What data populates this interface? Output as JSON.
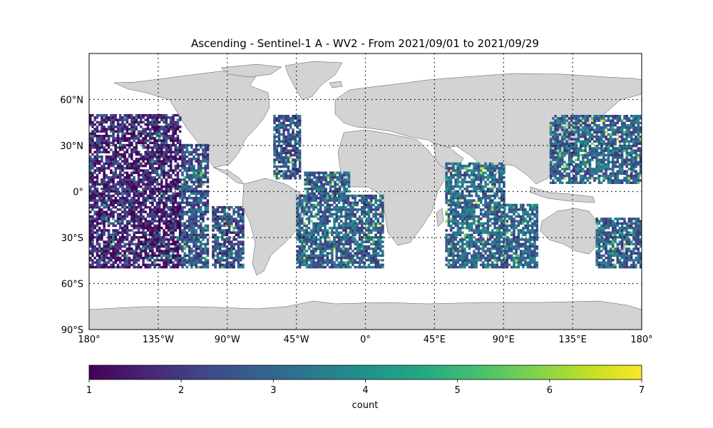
{
  "chart_data": {
    "type": "heatmap",
    "title": "Ascending - Sentinel-1 A - WV2 - From 2021/09/01 to 2021/09/29",
    "projection": "plate-carree",
    "xlim": [
      -180,
      180
    ],
    "ylim": [
      -90,
      90
    ],
    "lat_ticks": [
      {
        "value": 60,
        "label": "60°N"
      },
      {
        "value": 30,
        "label": "30°N"
      },
      {
        "value": 0,
        "label": "0°"
      },
      {
        "value": -30,
        "label": "30°S"
      },
      {
        "value": -60,
        "label": "60°S"
      },
      {
        "value": -90,
        "label": "90°S"
      }
    ],
    "lon_ticks": [
      {
        "value": -180,
        "label": "180°"
      },
      {
        "value": -135,
        "label": "135°W"
      },
      {
        "value": -90,
        "label": "90°W"
      },
      {
        "value": -45,
        "label": "45°W"
      },
      {
        "value": 0,
        "label": "0°"
      },
      {
        "value": 45,
        "label": "45°E"
      },
      {
        "value": 90,
        "label": "90°E"
      },
      {
        "value": 135,
        "label": "135°E"
      },
      {
        "value": 180,
        "label": "180°"
      }
    ],
    "grid": "dotted",
    "land_color": "#d3d3d3",
    "colormap": "viridis",
    "colorbar": {
      "label": "count",
      "min": 1,
      "max": 7,
      "ticks": [
        {
          "value": 1,
          "label": "1"
        },
        {
          "value": 2,
          "label": "2"
        },
        {
          "value": 3,
          "label": "3"
        },
        {
          "value": 4,
          "label": "4"
        },
        {
          "value": 5,
          "label": "5"
        },
        {
          "value": 6,
          "label": "6"
        },
        {
          "value": 7,
          "label": "7"
        }
      ]
    },
    "cell_size_deg": 1.5,
    "lat_extent": [
      -50,
      50
    ],
    "swath_strips": [
      {
        "lon_min": -180,
        "lon_max": -120,
        "lat_min": -50,
        "lat_max": 50,
        "mean_count": 1.6
      },
      {
        "lon_min": -120,
        "lon_max": -102,
        "lat_min": -50,
        "lat_max": 30,
        "mean_count": 2.6
      },
      {
        "lon_min": -100,
        "lon_max": -80,
        "lat_min": -50,
        "lat_max": -10,
        "mean_count": 2.4
      },
      {
        "lon_min": -60,
        "lon_max": -42,
        "lat_min": 8,
        "lat_max": 50,
        "mean_count": 2.6
      },
      {
        "lon_min": -40,
        "lon_max": -10,
        "lat_min": -5,
        "lat_max": 12,
        "mean_count": 2.8
      },
      {
        "lon_min": -45,
        "lon_max": 12,
        "lat_min": -50,
        "lat_max": -2,
        "mean_count": 2.9
      },
      {
        "lon_min": 52,
        "lon_max": 90,
        "lat_min": -50,
        "lat_max": 18,
        "mean_count": 3.0
      },
      {
        "lon_min": 90,
        "lon_max": 112,
        "lat_min": -50,
        "lat_max": -8,
        "mean_count": 3.0
      },
      {
        "lon_min": 120,
        "lon_max": 180,
        "lat_min": 5,
        "lat_max": 50,
        "mean_count": 2.9
      },
      {
        "lon_min": 150,
        "lon_max": 180,
        "lat_min": -50,
        "lat_max": -18,
        "mean_count": 2.8
      }
    ]
  }
}
